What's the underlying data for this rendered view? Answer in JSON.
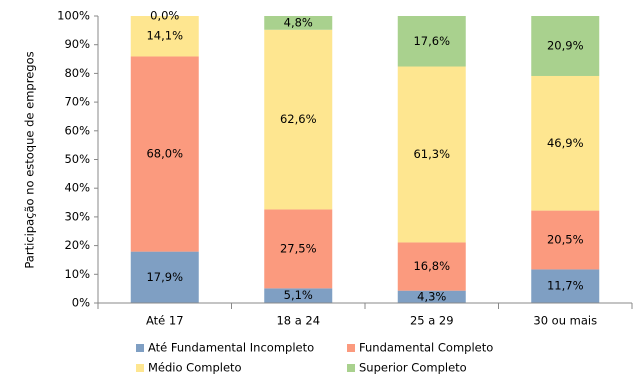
{
  "chart_data": {
    "type": "stacked_bar",
    "y_label": "Participação no estoque de empregos",
    "categories": [
      "Até 17",
      "18 a 24",
      "25 a 29",
      "30 ou mais"
    ],
    "series": [
      {
        "name": "Até Fundamental Incompleto",
        "color": "#7f9fc3",
        "values": [
          17.9,
          5.1,
          4.3,
          11.7
        ],
        "value_labels": [
          "17,9%",
          "5,1%",
          "4,3%",
          "11,7%"
        ]
      },
      {
        "name": "Fundamental Completo",
        "color": "#fb9a7e",
        "values": [
          68.0,
          27.5,
          16.8,
          20.5
        ],
        "value_labels": [
          "68,0%",
          "27,5%",
          "16,8%",
          "20,5%"
        ]
      },
      {
        "name": "Médio Completo",
        "color": "#fee690",
        "values": [
          14.1,
          62.6,
          61.3,
          46.9
        ],
        "value_labels": [
          "14,1%",
          "62,6%",
          "61,3%",
          "46,9%"
        ]
      },
      {
        "name": "Superior Completo",
        "color": "#a9d18e",
        "values": [
          0.0,
          4.8,
          17.6,
          20.9
        ],
        "value_labels": [
          "0,0%",
          "4,8%",
          "17,6%",
          "20,9%"
        ]
      }
    ],
    "ylim": [
      0,
      100
    ],
    "yticks": [
      {
        "value": 0,
        "label": "0%"
      },
      {
        "value": 10,
        "label": "10%"
      },
      {
        "value": 20,
        "label": "20%"
      },
      {
        "value": 30,
        "label": "30%"
      },
      {
        "value": 40,
        "label": "40%"
      },
      {
        "value": 50,
        "label": "50%"
      },
      {
        "value": 60,
        "label": "60%"
      },
      {
        "value": 70,
        "label": "70%"
      },
      {
        "value": 80,
        "label": "80%"
      },
      {
        "value": 90,
        "label": "90%"
      },
      {
        "value": 100,
        "label": "100%"
      }
    ],
    "grid": false
  }
}
